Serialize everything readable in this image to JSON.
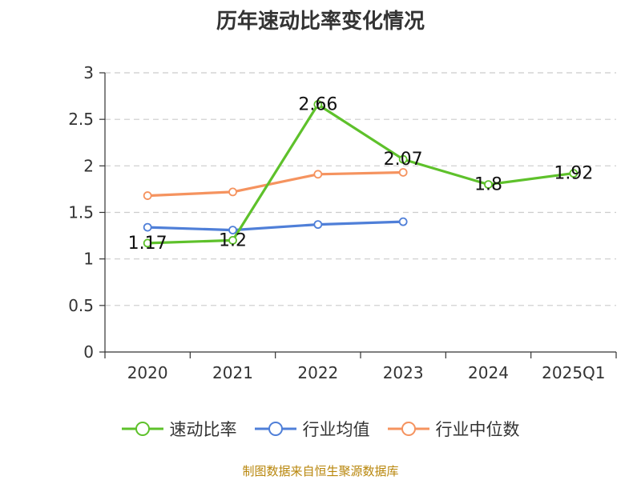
{
  "chart_data": {
    "type": "line",
    "title": "历年速动比率变化情况",
    "categories": [
      "2020",
      "2021",
      "2022",
      "2023",
      "2024",
      "2025Q1"
    ],
    "ylim": [
      0,
      3
    ],
    "yticks": [
      "0",
      "0.5",
      "1",
      "1.5",
      "2",
      "2.5",
      "3"
    ],
    "grid": true,
    "legend_position": "bottom",
    "xlabel": "",
    "ylabel": "",
    "series": [
      {
        "name": "速动比率",
        "color": "#5ec12b",
        "values": [
          1.17,
          1.2,
          2.66,
          2.07,
          1.8,
          1.92
        ],
        "labels": [
          "1.17",
          "1.2",
          "2.66",
          "2.07",
          "1.8",
          "1.92"
        ]
      },
      {
        "name": "行业均值",
        "color": "#4f7fd8",
        "values": [
          1.34,
          1.31,
          1.37,
          1.4,
          null,
          null
        ]
      },
      {
        "name": "行业中位数",
        "color": "#f5935f",
        "values": [
          1.68,
          1.72,
          1.91,
          1.93,
          null,
          null
        ]
      }
    ]
  },
  "source_note": "制图数据来自恒生聚源数据库"
}
